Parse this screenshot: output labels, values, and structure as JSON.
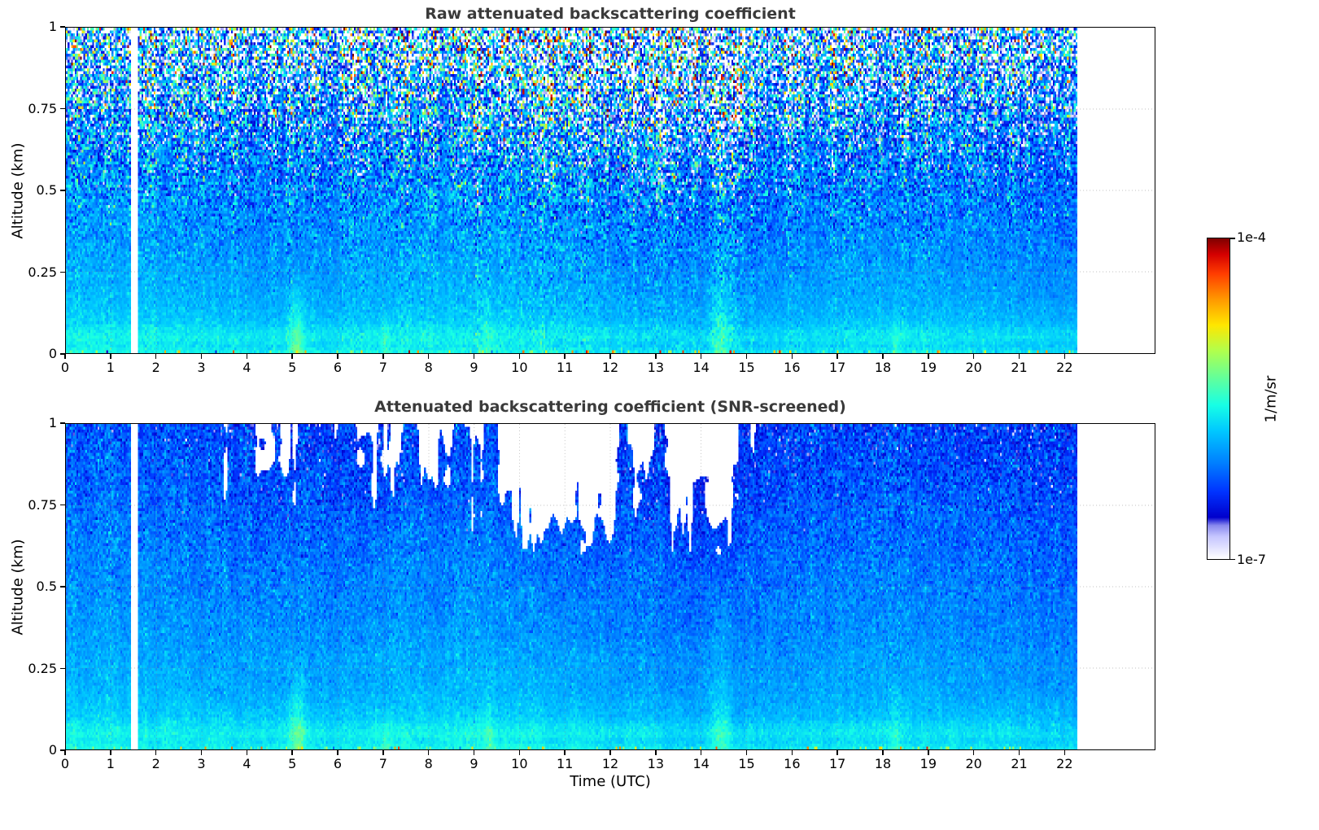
{
  "figure": {
    "background": "#ffffff",
    "title_color": "#3a3a3a"
  },
  "panels": [
    {
      "title": "Raw attenuated backscattering coefficient"
    },
    {
      "title": "Attenuated backscattering coefficient (SNR-screened)"
    }
  ],
  "axes": {
    "xlabel": "Time (UTC)",
    "ylabel": "Altitude (km)",
    "x_ticks": [
      {
        "value": 0,
        "label": "0"
      },
      {
        "value": 1,
        "label": "1"
      },
      {
        "value": 2,
        "label": "2"
      },
      {
        "value": 3,
        "label": "3"
      },
      {
        "value": 4,
        "label": "4"
      },
      {
        "value": 5,
        "label": "5"
      },
      {
        "value": 6,
        "label": "6"
      },
      {
        "value": 7,
        "label": "7"
      },
      {
        "value": 8,
        "label": "8"
      },
      {
        "value": 9,
        "label": "9"
      },
      {
        "value": 10,
        "label": "10"
      },
      {
        "value": 11,
        "label": "11"
      },
      {
        "value": 12,
        "label": "12"
      },
      {
        "value": 13,
        "label": "13"
      },
      {
        "value": 14,
        "label": "14"
      },
      {
        "value": 15,
        "label": "15"
      },
      {
        "value": 16,
        "label": "16"
      },
      {
        "value": 17,
        "label": "17"
      },
      {
        "value": 18,
        "label": "18"
      },
      {
        "value": 19,
        "label": "19"
      },
      {
        "value": 20,
        "label": "20"
      },
      {
        "value": 21,
        "label": "21"
      },
      {
        "value": 22,
        "label": "22"
      }
    ],
    "y_ticks": [
      {
        "value": 1,
        "label": "1"
      },
      {
        "value": 0.75,
        "label": "0.75"
      },
      {
        "value": 0.5,
        "label": "0.5"
      },
      {
        "value": 0.25,
        "label": "0.25"
      },
      {
        "value": 0,
        "label": "0"
      }
    ]
  },
  "colorbar": {
    "label": "1/m/sr",
    "top_label": "1e-4",
    "bottom_label": "1e-7"
  },
  "chart_data": {
    "type": "heatmap",
    "panel_titles": [
      "Raw attenuated backscattering coefficient",
      "Attenuated backscattering coefficient (SNR-screened)"
    ],
    "xlabel": "Time (UTC)",
    "ylabel": "Altitude (km)",
    "x_range": [
      0,
      24
    ],
    "x_ticks": [
      0,
      1,
      2,
      3,
      4,
      5,
      6,
      7,
      8,
      9,
      10,
      11,
      12,
      13,
      14,
      15,
      16,
      17,
      18,
      19,
      20,
      21,
      22
    ],
    "y_range": [
      0,
      1
    ],
    "y_ticks": [
      0,
      0.25,
      0.5,
      0.75,
      1
    ],
    "data_time_range": [
      0,
      22.3
    ],
    "missing_time_gap": [
      1.42,
      1.58
    ],
    "value_scale": {
      "type": "log",
      "units": "1/m/sr",
      "min": 1e-07,
      "max": 0.0001,
      "min_log10": -7,
      "max_log10": -4
    },
    "colormap_stops": [
      {
        "t": 0.0,
        "c": "#ffffff"
      },
      {
        "t": 0.035,
        "c": "#e2e2ff"
      },
      {
        "t": 0.07,
        "c": "#c6c6ff"
      },
      {
        "t": 0.105,
        "c": "#8888ee"
      },
      {
        "t": 0.13,
        "c": "#0000cc"
      },
      {
        "t": 0.21,
        "c": "#0033ff"
      },
      {
        "t": 0.3,
        "c": "#007fff"
      },
      {
        "t": 0.4,
        "c": "#00c8ff"
      },
      {
        "t": 0.48,
        "c": "#17ffe5"
      },
      {
        "t": 0.565,
        "c": "#63ff9a"
      },
      {
        "t": 0.65,
        "c": "#b1ff4c"
      },
      {
        "t": 0.73,
        "c": "#ffe600"
      },
      {
        "t": 0.81,
        "c": "#ff9800"
      },
      {
        "t": 0.89,
        "c": "#ff3d00"
      },
      {
        "t": 0.95,
        "c": "#d40000"
      },
      {
        "t": 1.0,
        "c": "#7f0000"
      }
    ],
    "altitude_profile_log10": [
      [
        0.0,
        -5.62
      ],
      [
        0.025,
        -5.72
      ],
      [
        0.045,
        -5.64
      ],
      [
        0.07,
        -5.7
      ],
      [
        0.1,
        -5.82
      ],
      [
        0.18,
        -5.92
      ],
      [
        0.35,
        -6.03
      ],
      [
        0.6,
        -6.13
      ],
      [
        0.8,
        -6.24
      ],
      [
        1.0,
        -6.33
      ]
    ],
    "time_wiggle": [
      [
        0.7,
        1.3,
        0.05
      ],
      [
        0.23,
        0.5,
        0.04
      ]
    ],
    "plumes": [
      [
        5.1,
        0.12,
        0.42,
        0.3
      ],
      [
        7.05,
        0.08,
        0.22,
        0.14
      ],
      [
        9.3,
        0.1,
        0.18,
        0.3
      ],
      [
        14.45,
        0.18,
        0.3,
        0.55
      ],
      [
        18.3,
        0.08,
        0.15,
        0.2
      ]
    ],
    "ground_speckle": {
      "alt_max": 0.012,
      "prob": 0.12,
      "log10_mean": -5.15,
      "log10_sigma": 0.5
    },
    "raw_noise": {
      "base": 0.06,
      "alt_gain": 0.9,
      "alt_pow": 2.2,
      "sigma_cap": 1.2,
      "column_mod": [
        0.65,
        0.9
      ],
      "midday_window": [
        8.5,
        15.3
      ],
      "midday_boost": 0.3,
      "column_base_amp": 0.08,
      "field_amp": 0.04,
      "seed": 101
    },
    "screened_noise": {
      "base": 0.05,
      "alt_gain": 0.12,
      "sigma_cap": 1.2,
      "column_mod": [
        0.8,
        0.5
      ],
      "column_base_amp": 0.09,
      "field_amp": 0.08,
      "seed": 202
    },
    "snr_mask": {
      "alt_floor": 0.45,
      "alt_pow": 1.1,
      "threshold": 0.5,
      "noise2_amp": 0.4,
      "column_amp": 0.35,
      "edge_ramp": 0.25,
      "darkening": 0.12,
      "patches": [
        [
          3.2,
          3.9,
          0.5
        ],
        [
          3.9,
          5.3,
          0.62
        ],
        [
          5.3,
          6.2,
          0.5
        ],
        [
          6.2,
          7.6,
          0.68
        ],
        [
          7.6,
          8.7,
          0.6
        ],
        [
          8.7,
          9.4,
          0.8
        ],
        [
          9.4,
          12.3,
          1.15
        ],
        [
          12.3,
          13.1,
          0.95
        ],
        [
          13.1,
          14.9,
          1.15
        ],
        [
          14.9,
          15.4,
          0.5
        ],
        [
          18.1,
          18.5,
          0.45
        ]
      ]
    }
  }
}
